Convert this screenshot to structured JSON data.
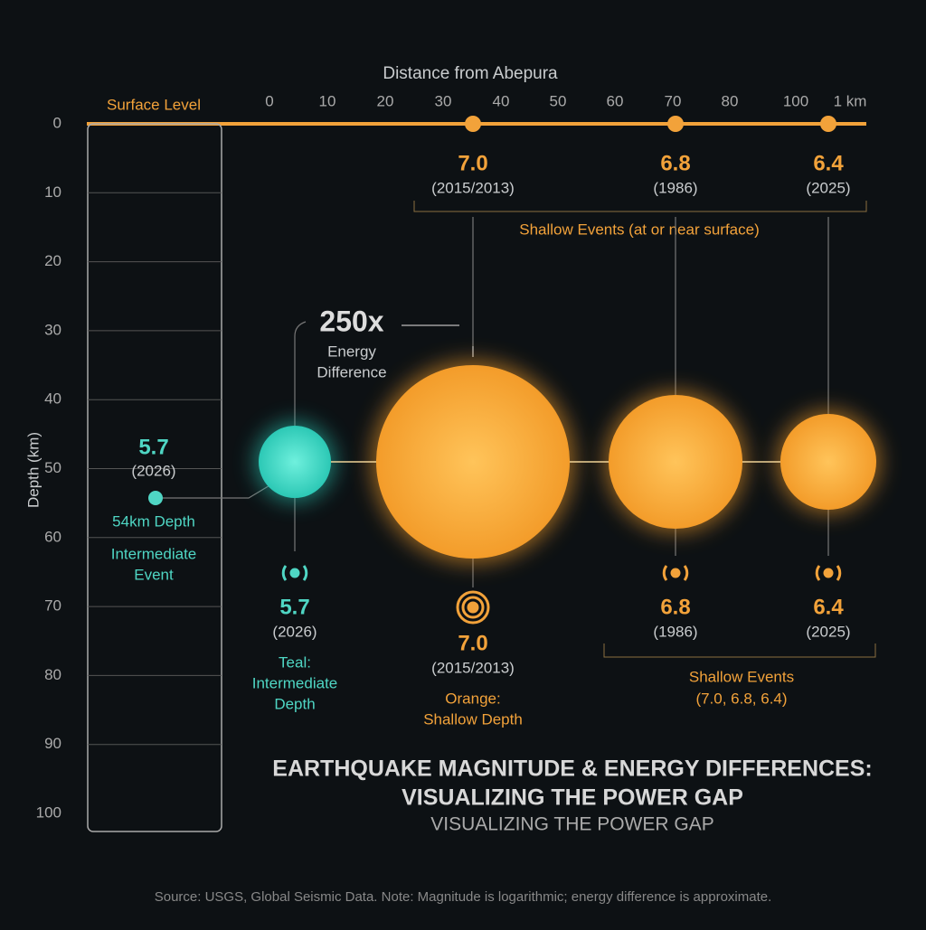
{
  "header": {
    "x_axis_title": "Distance from Abepura",
    "surface_label": "Surface Level",
    "y_axis_title": "Depth (km)"
  },
  "x_ticks": [
    "0",
    "10",
    "20",
    "30",
    "40",
    "50",
    "60",
    "70",
    "80",
    "100",
    "1 km"
  ],
  "depth_ticks": [
    "0",
    "10",
    "20",
    "30",
    "40",
    "50",
    "60",
    "70",
    "80",
    "90",
    "100"
  ],
  "surface_events": [
    {
      "magnitude": "7.0",
      "year": "(2015/2013)"
    },
    {
      "magnitude": "6.8",
      "year": "(1986)"
    },
    {
      "magnitude": "6.4",
      "year": "(2025)"
    }
  ],
  "shallow_group_label": "Shallow Events (at or near surface)",
  "energy": {
    "value": "250x",
    "label_1": "Energy",
    "label_2": "Difference"
  },
  "intermediate": {
    "magnitude": "5.7",
    "year": "(2026)",
    "depth": "54km Depth",
    "label_1": "Intermediate",
    "label_2": "Event"
  },
  "bottom_events": [
    {
      "magnitude": "5.7",
      "year": "(2026)",
      "notes": [
        "Teal:",
        "Intermediate",
        "Depth"
      ]
    },
    {
      "magnitude": "7.0",
      "year": "(2015/2013)",
      "notes": [
        "Orange:",
        "Shallow Depth"
      ]
    },
    {
      "magnitude": "6.8",
      "year": "(1986)"
    },
    {
      "magnitude": "6.4",
      "year": "(2025)"
    }
  ],
  "shallow_summary": [
    "Shallow Events",
    "(7.0, 6.8, 6.4)"
  ],
  "title_1": "EARTHQUAKE MAGNITUDE & ENERGY DIFFERENCES:",
  "title_2": "VISUALIZING THE POWER GAP",
  "subtitle": "VISUALIZING THE POWER GAP",
  "source": "Source: USGS, Global Seismic Data. Note: Magnitude is logarithmic; energy difference is approximate."
}
